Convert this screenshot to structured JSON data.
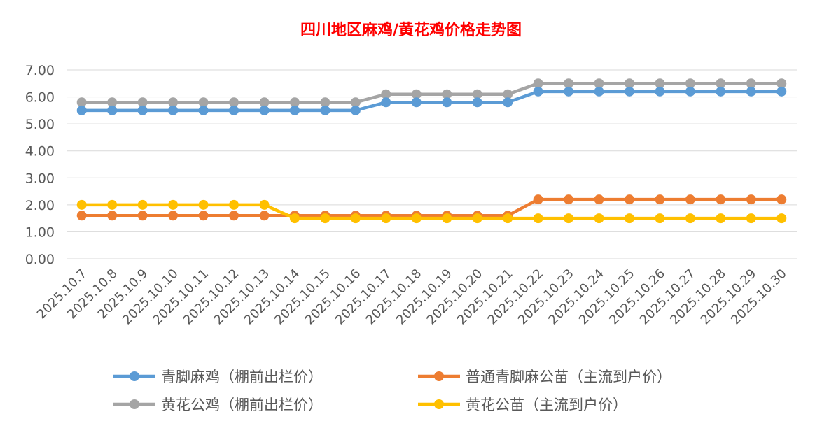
{
  "chart_data": {
    "type": "line",
    "title": "四川地区麻鸡/黄花鸡价格走势图",
    "xlabel": "",
    "ylabel": "",
    "ylim": [
      0,
      7
    ],
    "yticks": [
      "0.00",
      "1.00",
      "2.00",
      "3.00",
      "4.00",
      "5.00",
      "6.00",
      "7.00"
    ],
    "grid": true,
    "legend_position": "bottom",
    "categories": [
      "2025.10.7",
      "2025.10.8",
      "2025.10.9",
      "2025.10.10",
      "2025.10.11",
      "2025.10.12",
      "2025.10.13",
      "2025.10.14",
      "2025.10.15",
      "2025.10.16",
      "2025.10.17",
      "2025.10.18",
      "2025.10.19",
      "2025.10.20",
      "2025.10.21",
      "2025.10.22",
      "2025.10.23",
      "2025.10.24",
      "2025.10.25",
      "2025.10.26",
      "2025.10.27",
      "2025.10.28",
      "2025.10.29",
      "2025.10.30"
    ],
    "series": [
      {
        "name": "青脚麻鸡（棚前出栏价）",
        "color": "#5b9bd5",
        "values": [
          5.5,
          5.5,
          5.5,
          5.5,
          5.5,
          5.5,
          5.5,
          5.5,
          5.5,
          5.5,
          5.8,
          5.8,
          5.8,
          5.8,
          5.8,
          6.2,
          6.2,
          6.2,
          6.2,
          6.2,
          6.2,
          6.2,
          6.2,
          6.2
        ]
      },
      {
        "name": "普通青脚麻公苗（主流到户价）",
        "color": "#ed7d31",
        "values": [
          1.6,
          1.6,
          1.6,
          1.6,
          1.6,
          1.6,
          1.6,
          1.6,
          1.6,
          1.6,
          1.6,
          1.6,
          1.6,
          1.6,
          1.6,
          2.2,
          2.2,
          2.2,
          2.2,
          2.2,
          2.2,
          2.2,
          2.2,
          2.2
        ]
      },
      {
        "name": "黄花公鸡（棚前出栏价）",
        "color": "#a5a5a5",
        "values": [
          5.8,
          5.8,
          5.8,
          5.8,
          5.8,
          5.8,
          5.8,
          5.8,
          5.8,
          5.8,
          6.1,
          6.1,
          6.1,
          6.1,
          6.1,
          6.5,
          6.5,
          6.5,
          6.5,
          6.5,
          6.5,
          6.5,
          6.5,
          6.5
        ]
      },
      {
        "name": "黄花公苗（主流到户价）",
        "color": "#ffc000",
        "values": [
          2.0,
          2.0,
          2.0,
          2.0,
          2.0,
          2.0,
          2.0,
          1.5,
          1.5,
          1.5,
          1.5,
          1.5,
          1.5,
          1.5,
          1.5,
          1.5,
          1.5,
          1.5,
          1.5,
          1.5,
          1.5,
          1.5,
          1.5,
          1.5
        ]
      }
    ]
  }
}
